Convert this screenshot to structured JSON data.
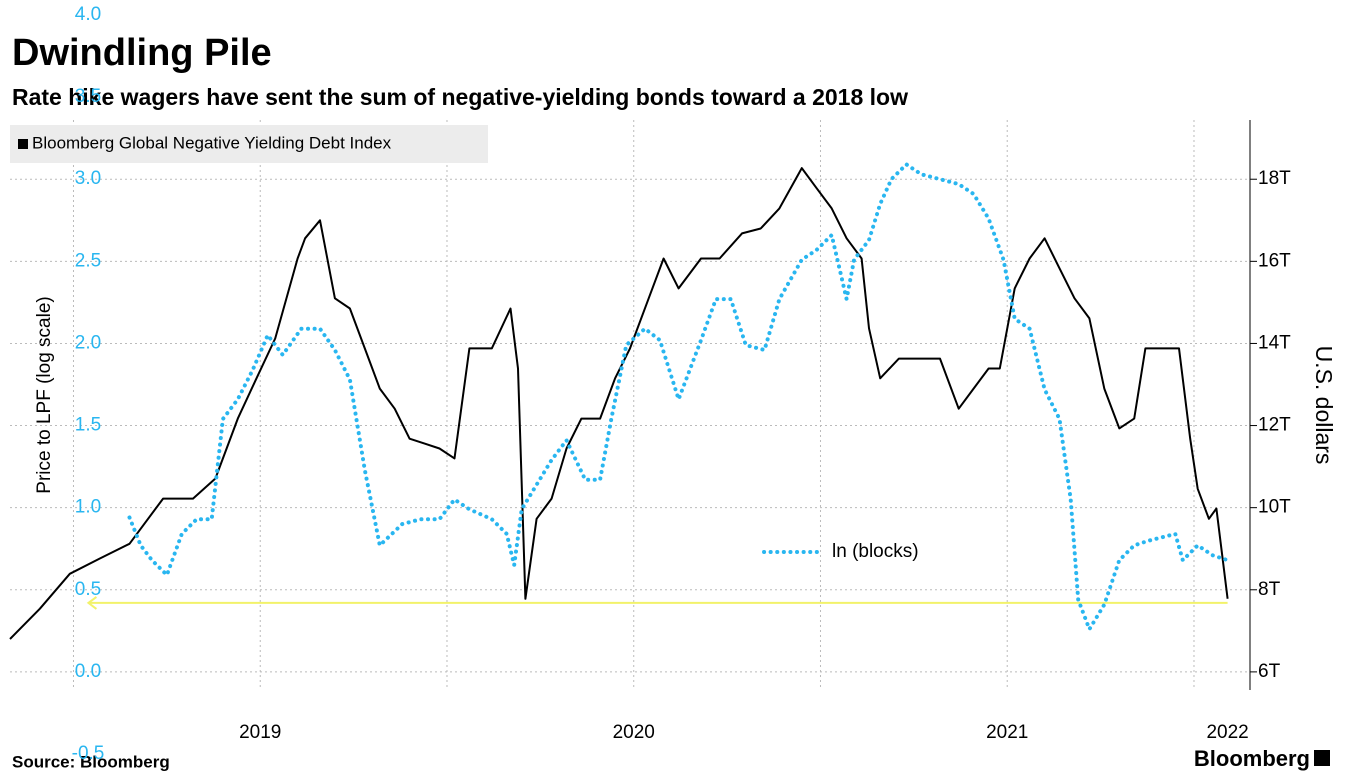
{
  "chart_data": {
    "type": "line",
    "title": "Dwindling Pile",
    "subtitle": "Rate hike wagers have sent the sum of negative-yielding bonds toward a 2018 low",
    "y_label": "Price to LPF (log scale)",
    "y2_label": "U.S. dollars",
    "source": "Source: Bloomberg",
    "logo": "Bloomberg",
    "xlim": [
      2018.83,
      2022.15
    ],
    "xticks": [
      {
        "value": 2019.5,
        "label": "2019"
      },
      {
        "value": 2020.5,
        "label": "2020"
      },
      {
        "value": 2021.5,
        "label": "2021"
      },
      {
        "value": 2022.09,
        "label": "2022"
      }
    ],
    "xgrid": [
      2019,
      2019.5,
      2020,
      2020.5,
      2021,
      2021.5,
      2022
    ],
    "ylim": [
      -0.5,
      4.0
    ],
    "yticks": [
      {
        "value": 4.0,
        "label": "4.0"
      },
      {
        "value": 3.5,
        "label": "3.5"
      },
      {
        "value": 3.0,
        "label": "3.0"
      },
      {
        "value": 2.5,
        "label": "2.5"
      },
      {
        "value": 2.0,
        "label": "2.0"
      },
      {
        "value": 1.5,
        "label": "1.5"
      },
      {
        "value": 1.0,
        "label": "1.0"
      },
      {
        "value": 0.5,
        "label": "0.5"
      },
      {
        "value": 0.0,
        "label": "0.0"
      },
      {
        "value": -0.5,
        "label": "-0.5"
      }
    ],
    "y2lim": [
      4,
      22
    ],
    "y2ticks": [
      {
        "value": 18,
        "label": "18T"
      },
      {
        "value": 16,
        "label": "16T"
      },
      {
        "value": 14,
        "label": "14T"
      },
      {
        "value": 12,
        "label": "12T"
      },
      {
        "value": 10,
        "label": "10T"
      },
      {
        "value": 8,
        "label": "8T"
      },
      {
        "value": 6,
        "label": "6T"
      }
    ],
    "grid": true,
    "series": [
      {
        "name": "Bloomberg Global Negative Yielding Debt Index",
        "color": "#000000",
        "axis": "y2",
        "style": "solid",
        "x": [
          2018.83,
          2018.91,
          2018.99,
          2019.07,
          2019.15,
          2019.24,
          2019.32,
          2019.38,
          2019.44,
          2019.49,
          2019.54,
          2019.6,
          2019.62,
          2019.66,
          2019.7,
          2019.74,
          2019.78,
          2019.82,
          2019.86,
          2019.9,
          2019.94,
          2019.98,
          2020.02,
          2020.06,
          2020.12,
          2020.17,
          2020.19,
          2020.21,
          2020.24,
          2020.28,
          2020.32,
          2020.36,
          2020.41,
          2020.45,
          2020.49,
          2020.54,
          2020.58,
          2020.62,
          2020.68,
          2020.73,
          2020.79,
          2020.84,
          2020.89,
          2020.95,
          2020.99,
          2021.03,
          2021.07,
          2021.11,
          2021.13,
          2021.16,
          2021.21,
          2021.27,
          2021.32,
          2021.37,
          2021.41,
          2021.45,
          2021.48,
          2021.52,
          2021.56,
          2021.6,
          2021.64,
          2021.68,
          2021.72,
          2021.76,
          2021.8,
          2021.84,
          2021.87,
          2021.92,
          2021.96,
          2021.99,
          2022.01,
          2022.04,
          2022.06,
          2022.09
        ],
        "values": [
          6.8,
          7.54,
          8.39,
          8.76,
          9.12,
          10.22,
          10.22,
          10.71,
          12.17,
          13.15,
          14.12,
          16.07,
          16.56,
          17.0,
          15.1,
          14.85,
          13.88,
          12.9,
          12.41,
          11.68,
          11.56,
          11.44,
          11.2,
          13.88,
          13.88,
          14.85,
          13.39,
          7.78,
          9.73,
          10.22,
          11.44,
          12.17,
          12.17,
          13.15,
          13.88,
          15.1,
          16.07,
          15.34,
          16.07,
          16.07,
          16.68,
          16.8,
          17.29,
          18.27,
          17.78,
          17.29,
          16.56,
          16.07,
          14.37,
          13.15,
          13.63,
          13.63,
          13.63,
          12.41,
          12.9,
          13.39,
          13.39,
          15.34,
          16.07,
          16.56,
          15.83,
          15.1,
          14.61,
          12.9,
          11.93,
          12.17,
          13.88,
          13.88,
          13.88,
          11.68,
          10.46,
          9.73,
          9.98,
          7.78
        ]
      },
      {
        "name": "ln (blocks)",
        "color": "#29b6f0",
        "axis": "y",
        "style": "dotted",
        "x": [
          2019.15,
          2019.18,
          2019.21,
          2019.25,
          2019.29,
          2019.33,
          2019.37,
          2019.4,
          2019.44,
          2019.48,
          2019.52,
          2019.56,
          2019.61,
          2019.66,
          2019.7,
          2019.74,
          2019.78,
          2019.82,
          2019.88,
          2019.93,
          2019.98,
          2020.02,
          2020.06,
          2020.12,
          2020.16,
          2020.18,
          2020.2,
          2020.24,
          2020.28,
          2020.32,
          2020.37,
          2020.41,
          2020.44,
          2020.48,
          2020.53,
          2020.57,
          2020.62,
          2020.68,
          2020.72,
          2020.76,
          2020.8,
          2020.85,
          2020.89,
          2020.95,
          2020.99,
          2021.03,
          2021.07,
          2021.09,
          2021.13,
          2021.16,
          2021.19,
          2021.23,
          2021.27,
          2021.32,
          2021.37,
          2021.41,
          2021.45,
          2021.49,
          2021.52,
          2021.56,
          2021.6,
          2021.64,
          2021.67,
          2021.69,
          2021.72,
          2021.76,
          2021.8,
          2021.84,
          2021.88,
          2021.95,
          2021.97,
          2022.01,
          2022.05,
          2022.09
        ],
        "values": [
          0.94,
          0.77,
          0.68,
          0.59,
          0.84,
          0.93,
          0.93,
          1.54,
          1.66,
          1.84,
          2.05,
          1.93,
          2.09,
          2.09,
          1.96,
          1.78,
          1.23,
          0.77,
          0.9,
          0.93,
          0.93,
          1.05,
          0.99,
          0.93,
          0.84,
          0.65,
          0.99,
          1.14,
          1.29,
          1.41,
          1.17,
          1.17,
          1.54,
          1.99,
          2.09,
          2.02,
          1.66,
          2.02,
          2.27,
          2.27,
          1.99,
          1.96,
          2.27,
          2.51,
          2.57,
          2.66,
          2.27,
          2.51,
          2.63,
          2.85,
          3.0,
          3.09,
          3.03,
          3.0,
          2.97,
          2.91,
          2.76,
          2.51,
          2.15,
          2.09,
          1.72,
          1.54,
          1.05,
          0.44,
          0.26,
          0.41,
          0.68,
          0.77,
          0.8,
          0.84,
          0.68,
          0.77,
          0.71,
          0.68
        ]
      }
    ],
    "reference_line": {
      "value": 7.68,
      "axis": "y2",
      "x": [
        2019.04,
        2022.09
      ],
      "color": "#f2f26a"
    }
  }
}
